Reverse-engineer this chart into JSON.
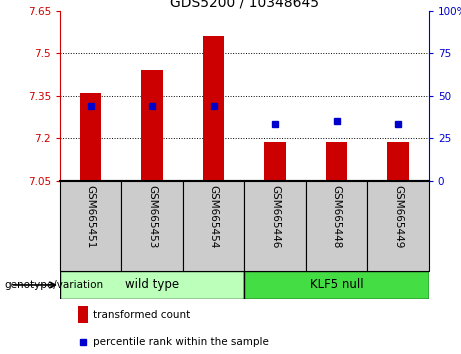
{
  "title": "GDS5200 / 10348645",
  "categories": [
    "GSM665451",
    "GSM665453",
    "GSM665454",
    "GSM665446",
    "GSM665448",
    "GSM665449"
  ],
  "bar_values": [
    7.36,
    7.44,
    7.56,
    7.185,
    7.185,
    7.185
  ],
  "bar_bottom": 7.05,
  "percentile_values": [
    44,
    44,
    44,
    33,
    35,
    33
  ],
  "ylim_left": [
    7.05,
    7.65
  ],
  "ylim_right": [
    0,
    100
  ],
  "yticks_left": [
    7.05,
    7.2,
    7.35,
    7.5,
    7.65
  ],
  "yticks_right": [
    0,
    25,
    50,
    75,
    100
  ],
  "ytick_labels_left": [
    "7.05",
    "7.2",
    "7.35",
    "7.5",
    "7.65"
  ],
  "ytick_labels_right": [
    "0",
    "25",
    "50",
    "75",
    "100%"
  ],
  "hlines": [
    7.2,
    7.35,
    7.5
  ],
  "bar_color": "#cc0000",
  "dot_color": "#0000cc",
  "wild_type_label": "wild type",
  "klf5_label": "KLF5 null",
  "wild_type_color": "#bbffbb",
  "klf5_color": "#44dd44",
  "group_label": "genotype/variation",
  "legend_bar_label": "transformed count",
  "legend_dot_label": "percentile rank within the sample",
  "bar_width": 0.35,
  "tick_color_left": "#cc0000",
  "tick_color_right": "#0000cc",
  "bg_color": "#ffffff",
  "xtick_box_color": "#cccccc",
  "separator_color": "#000000"
}
